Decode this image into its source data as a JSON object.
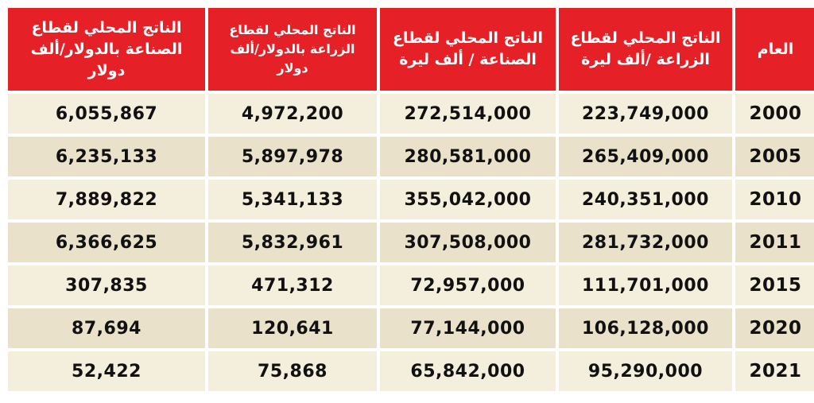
{
  "table": {
    "headers": [
      "العام",
      "الناتج المحلي لقطاع الزراعة /ألف ليرة",
      "الناتج المحلي لقطاع الصناعة / ألف ليرة",
      "الناتج المحلي لقطاع الزراعة بالدولار/ألف دولار",
      "الناتج المحلي لقطاع الصناعة بالدولار/ألف دولار"
    ],
    "rows": [
      [
        "2000",
        "223,749,000",
        "272,514,000",
        "4,972,200",
        "6,055,867"
      ],
      [
        "2005",
        "265,409,000",
        "280,581,000",
        "5,897,978",
        "6,235,133"
      ],
      [
        "2010",
        "240,351,000",
        "355,042,000",
        "5,341,133",
        "7,889,822"
      ],
      [
        "2011",
        "281,732,000",
        "307,508,000",
        "5,832,961",
        "6,366,625"
      ],
      [
        "2015",
        "111,701,000",
        "72,957,000",
        "471,312",
        "307,835"
      ],
      [
        "2020",
        "106,128,000",
        "77,144,000",
        "120,641",
        "87,694"
      ],
      [
        "2021",
        "95,290,000",
        "65,842,000",
        "75,868",
        "52,422"
      ]
    ]
  },
  "colors": {
    "header_bg": "#e52127",
    "header_text": "#ffffff",
    "row_bg": "#f4eedc",
    "row_alt_bg": "#e9e1c9"
  }
}
